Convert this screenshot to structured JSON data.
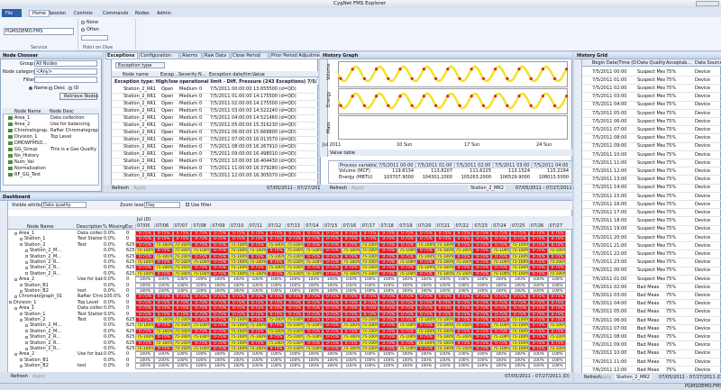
{
  "window": {
    "title": "CygNet FMS Explorer",
    "status": "PGMSDEMO.FMS"
  },
  "ribbon": {
    "tabs": [
      "File",
      "Home",
      "Session",
      "Controls",
      "Commands",
      "Nodes",
      "Admin"
    ],
    "service": "PGMSDEMO.FMS",
    "service_label": "Service",
    "options": [
      "None",
      "Often"
    ],
    "group_label": "Point on Dive"
  },
  "node_chooser": {
    "title": "Node Chooser",
    "group_label": "Group:",
    "group": "All Nodes",
    "category_label": "Node category:",
    "category": "<Any>",
    "filter_label": "Filter",
    "radios": [
      "Name",
      "Desc",
      "ID"
    ],
    "button": "Retrieve Nodes",
    "columns": [
      "Node Name",
      "Node Desc"
    ],
    "rows": [
      {
        "name": "Area_1",
        "desc": "Data collection"
      },
      {
        "name": "Area_2",
        "desc": "Use for balancing"
      },
      {
        "name": "Chromatograp...",
        "desc": "Rafter Chromatograph"
      },
      {
        "name": "Division_1",
        "desc": "Top Level"
      },
      {
        "name": "DMDWFMSD..."
      },
      {
        "name": "GG_Group",
        "desc": "This is a Gas Quality ..."
      },
      {
        "name": "No_History"
      },
      {
        "name": "Num_Val"
      },
      {
        "name": "Normalization"
      },
      {
        "name": "RF_GG_Test"
      }
    ]
  },
  "exceptions": {
    "tabs": [
      "Exceptions",
      "Configuration",
      "Alarms",
      "Raw Data",
      "Close Period",
      "Prior Period Adjustment",
      "Balance"
    ],
    "filter": "Exception type",
    "columns": [
      "Node name",
      "Excep...",
      "Severity",
      "N...",
      "Exception date/tim...",
      "Value"
    ],
    "group": "Exception type: High/low operational limit - Diff. Pressure (243 Exceptions) 7/5/2011...",
    "rows": [
      {
        "node": "Station_2_RR1",
        "status": "Open",
        "severity": "Medium",
        "n": "0",
        "date": "7/5/2011 00:00:00",
        "value": "13.655500 (d=QD)"
      },
      {
        "node": "Station_2_RR1",
        "status": "Open",
        "severity": "Medium",
        "n": "0",
        "date": "7/5/2011 01:00:00",
        "value": "14.175500 (d=QD)"
      },
      {
        "node": "Station_2_RR1",
        "status": "Open",
        "severity": "Medium",
        "n": "0",
        "date": "7/5/2011 02:00:00",
        "value": "14.175500 (d=QD)"
      },
      {
        "node": "Station_2_RR1",
        "status": "Open",
        "severity": "Medium",
        "n": "0",
        "date": "7/5/2011 03:00:00",
        "value": "14.522240 (d=QD)"
      },
      {
        "node": "Station_2_RR1",
        "status": "Open",
        "severity": "Medium",
        "n": "0",
        "date": "7/5/2011 04:00:00",
        "value": "14.521460 (d=QD)"
      },
      {
        "node": "Station_2_RR1",
        "status": "Open",
        "severity": "Medium",
        "n": "0",
        "date": "7/5/2011 05:00:00",
        "value": "15.316230 (d=QD)"
      },
      {
        "node": "Station_2_RR1",
        "status": "Open",
        "severity": "Medium",
        "n": "0",
        "date": "7/5/2011 06:00:00",
        "value": "15.668800 (d=QD)"
      },
      {
        "node": "Station_2_RR1",
        "status": "Open",
        "severity": "Medium",
        "n": "0",
        "date": "7/5/2011 07:00:00",
        "value": "16.013570 (d=QD)"
      },
      {
        "node": "Station_2_RR1",
        "status": "Open",
        "severity": "Medium",
        "n": "0",
        "date": "7/5/2011 08:00:00",
        "value": "16.267910 (d=QD)"
      },
      {
        "node": "Station_2_RR1",
        "status": "Open",
        "severity": "Medium",
        "n": "0",
        "date": "7/5/2011 09:00:00",
        "value": "16.498010 (d=QD)"
      },
      {
        "node": "Station_2_RR1",
        "status": "Open",
        "severity": "Medium",
        "n": "0",
        "date": "7/5/2011 10:00:00",
        "value": "16.404430 (d=QD)"
      },
      {
        "node": "Station_2_RR1",
        "status": "Open",
        "severity": "Medium",
        "n": "0",
        "date": "7/5/2011 11:00:00",
        "value": "16.379280 (d=QD)"
      },
      {
        "node": "Station_2_RR1",
        "status": "Open",
        "severity": "Medium",
        "n": "0",
        "date": "7/5/2011 12:00:00",
        "value": "16.305070 (d=QD)"
      }
    ],
    "footer": [
      "Refresh",
      "Apply"
    ],
    "range": "07/05/2011 - 07/27/2011 (D)"
  },
  "history_graph": {
    "title": "History Graph",
    "lanes": [
      "Volume",
      "Energy",
      "Mass"
    ],
    "x_labels": [
      "Jul 2011",
      "10 Sun",
      "17 Sun",
      "24 Sun"
    ],
    "values_title": "Value table",
    "values_columns": [
      "Process variable",
      "7/5/2011 00:00",
      "7/5/2011 01:00",
      "7/5/2011 02:00",
      "7/5/2011 03:00",
      "7/5/2011 04:00"
    ],
    "values_rows": [
      [
        "Volume (MCF)",
        "119.8134",
        "113.8207",
        "111.6225",
        "113.1524",
        "115.2194"
      ],
      [
        "Energy (MBTU)",
        "103707.9000",
        "104301.2000",
        "105263.2000",
        "106529.9000",
        "108013.5000"
      ]
    ],
    "footer": [
      "Refresh",
      "Apply"
    ],
    "node": "Station_2_MR2",
    "range": "07/05/2011 - 07/27/2011 (D)"
  },
  "history_grid": {
    "title": "History Grid",
    "columns": [
      "Begin Date/Time (D)",
      "Data Quality",
      "Acceptab...",
      "Data Source"
    ],
    "rows": [
      [
        "7/5/2011 00:00",
        "Suspect Meas",
        "75%",
        "Device"
      ],
      [
        "7/5/2011 01:00",
        "Suspect Meas",
        "75%",
        "Device"
      ],
      [
        "7/5/2011 02:00",
        "Suspect Meas",
        "75%",
        "Device"
      ],
      [
        "7/5/2011 03:00",
        "Suspect Meas",
        "75%",
        "Device"
      ],
      [
        "7/5/2011 04:00",
        "Suspect Meas",
        "75%",
        "Device"
      ],
      [
        "7/5/2011 05:00",
        "Suspect Meas",
        "75%",
        "Device"
      ],
      [
        "7/5/2011 06:00",
        "Suspect Meas",
        "75%",
        "Device"
      ],
      [
        "7/5/2011 07:00",
        "Suspect Meas",
        "75%",
        "Device"
      ],
      [
        "7/5/2011 08:00",
        "Suspect Meas",
        "75%",
        "Device"
      ],
      [
        "7/5/2011 09:00",
        "Suspect Meas",
        "75%",
        "Device"
      ],
      [
        "7/5/2011 10:00",
        "Suspect Meas",
        "75%",
        "Device"
      ],
      [
        "7/5/2011 11:00",
        "Suspect Meas",
        "75%",
        "Device"
      ],
      [
        "7/5/2011 12:00",
        "Suspect Meas",
        "75%",
        "Device"
      ],
      [
        "7/5/2011 13:00",
        "Suspect Meas",
        "75%",
        "Device"
      ],
      [
        "7/5/2011 14:00",
        "Suspect Meas",
        "75%",
        "Device"
      ],
      [
        "7/5/2011 15:00",
        "Suspect Meas",
        "75%",
        "Device"
      ],
      [
        "7/5/2011 16:00",
        "Suspect Meas",
        "75%",
        "Device"
      ],
      [
        "7/5/2011 17:00",
        "Suspect Meas",
        "75%",
        "Device"
      ],
      [
        "7/5/2011 18:00",
        "Suspect Meas",
        "75%",
        "Device"
      ],
      [
        "7/5/2011 19:00",
        "Suspect Meas",
        "75%",
        "Device"
      ],
      [
        "7/5/2011 20:00",
        "Suspect Meas",
        "75%",
        "Device"
      ],
      [
        "7/5/2011 21:00",
        "Suspect Meas",
        "75%",
        "Device"
      ],
      [
        "7/5/2011 22:00",
        "Suspect Meas",
        "75%",
        "Device"
      ],
      [
        "7/5/2011 23:00",
        "Suspect Meas",
        "75%",
        "Device"
      ],
      [
        "7/6/2011 00:00",
        "Suspect Meas",
        "75%",
        "Device"
      ],
      [
        "7/6/2011 01:00",
        "Suspect Meas",
        "75%",
        "Device"
      ],
      [
        "7/6/2011 02:00",
        "Bad Meas",
        "75%",
        "Device"
      ],
      [
        "7/6/2011 03:00",
        "Bad Meas",
        "75%",
        "Device"
      ],
      [
        "7/6/2011 04:00",
        "Bad Meas",
        "75%",
        "Device"
      ],
      [
        "7/6/2011 05:00",
        "Bad Meas",
        "75%",
        "Device"
      ],
      [
        "7/6/2011 06:00",
        "Bad Meas",
        "75%",
        "Device"
      ],
      [
        "7/6/2011 07:00",
        "Bad Meas",
        "75%",
        "Device"
      ],
      [
        "7/6/2011 08:00",
        "Bad Meas",
        "75%",
        "Device"
      ],
      [
        "7/6/2011 09:00",
        "Bad Meas",
        "75%",
        "Device"
      ],
      [
        "7/6/2011 10:00",
        "Bad Meas",
        "75%",
        "Device"
      ],
      [
        "7/6/2011 11:00",
        "Bad Meas",
        "75%",
        "Device"
      ],
      [
        "7/6/2011 12:00",
        "Bad Meas",
        "75%",
        "Device"
      ]
    ],
    "footer": [
      "Refresh",
      "Apply"
    ],
    "node": "Station_2_MR2",
    "range": "07/05/2011 - 07/27/2011 (D)"
  },
  "dashboard": {
    "title": "Dashboard",
    "attribute_label": "Visible attribute:",
    "attribute": "Data quality",
    "zoom_label": "Zoom level:",
    "zoom": "Day",
    "filter_label": "Use filter",
    "month": "Jul (D)",
    "columns": [
      "Node Name",
      "Description",
      "% Missing",
      "Exc"
    ],
    "dates": [
      "07/05",
      "07/06",
      "07/07",
      "07/08",
      "07/09",
      "07/10",
      "07/11",
      "07/12",
      "07/13",
      "07/14",
      "07/15",
      "07/16",
      "07/17",
      "07/18",
      "07/19",
      "07/20",
      "07/21",
      "07/22",
      "07/23",
      "07/24",
      "07/25",
      "07/26",
      "07/27"
    ],
    "cell_labels": {
      "r": "0-75%",
      "y": "75-100%",
      "w": "100%"
    },
    "rows": [
      {
        "name": "Area_1",
        "desc": "Data collection",
        "missing": "0.0%",
        "exc": "0",
        "cells": "rrrrrrrrrrrrrrrrrrrrrrr"
      },
      {
        "name": "Station_1",
        "desc": "Test Station ...",
        "missing": "0.0%",
        "exc": "0",
        "cells": "rrrrrrrrrrrrrrrrrrrrrrr"
      },
      {
        "name": "Station_2",
        "desc": "Test",
        "missing": "0.0%",
        "exc": "625",
        "cells": "ryyrryryyrrryrryyrrryrr"
      },
      {
        "name": "Station_2_M...",
        "missing": "0.0%",
        "exc": "625",
        "cells": "yryyryyryyryyryryyryyry"
      },
      {
        "name": "Station_2_M...",
        "missing": "0.0%",
        "exc": "625",
        "cells": "ryyrryryyrrryrryyrrryrr"
      },
      {
        "name": "Station_2_R...",
        "missing": "0.0%",
        "exc": "625",
        "cells": "yryyryyryyryyryryyryyry"
      },
      {
        "name": "Station_2_R...",
        "missing": "0.0%",
        "exc": "625",
        "cells": "ryyrryryyrrryrryyrrryrr"
      },
      {
        "name": "Station_2_R...",
        "missing": "0.0%",
        "exc": "625",
        "cells": "yryyryyryyryyryryyryyry"
      },
      {
        "name": "Area_2",
        "desc": "Use for bala...",
        "missing": "0.0%",
        "exc": "0",
        "cells": "wwwwwwwwwwwwwwwwwwwwwww"
      },
      {
        "name": "Station_B1",
        "missing": "0.0%",
        "exc": "0",
        "cells": "wwwwwwwwwwwwwwwwwwwwwww"
      },
      {
        "name": "Station_B2",
        "desc": "test",
        "missing": "0.0%",
        "exc": "0",
        "cells": "wwwwwwwwwwwwwwwwwwwwwww"
      },
      {
        "name": "Chromatograph_01",
        "desc": "Rafter Chroma...",
        "missing": "100.0%",
        "exc": "0",
        "cells": "rrrrrrrrrrrrrrrrrrrrrrr"
      },
      {
        "name": "Division_1",
        "desc": "Top Level",
        "missing": "0.0%",
        "exc": "0",
        "cells": "rrrrrrrrrrrrrrrrrrrrrrr"
      },
      {
        "name": "Area_1",
        "desc": "Data collection",
        "missing": "0.0%",
        "exc": "0",
        "cells": "rrrrrrrrrrrrrrrrrrrrrrr"
      },
      {
        "name": "Station_1",
        "desc": "Test Station",
        "missing": "0.0%",
        "exc": "0",
        "cells": "rrrrrrrrrrrrrrrrrrrrrrr"
      },
      {
        "name": "Station_2",
        "desc": "Test",
        "missing": "0.0%",
        "exc": "625",
        "cells": "ryyrryryyrrryrryyrrryrr"
      },
      {
        "name": "Station_2_M...",
        "missing": "0.0%",
        "exc": "625",
        "cells": "yryyryyryyryyryryyryyry"
      },
      {
        "name": "Station_2_M...",
        "missing": "0.0%",
        "exc": "625",
        "cells": "ryyrryryyrrryrryyrrryrr"
      },
      {
        "name": "Station_2_R...",
        "missing": "0.0%",
        "exc": "625",
        "cells": "yryyryyryyryyryryyryyry"
      },
      {
        "name": "Station_2_R...",
        "missing": "0.0%",
        "exc": "625",
        "cells": "ryyrryryyrrryrryyrrryrr"
      },
      {
        "name": "Station_2_R...",
        "missing": "0.0%",
        "exc": "625",
        "cells": "yryyryyryyryyryryyryyry"
      },
      {
        "name": "Area_2",
        "desc": "Use for bala...",
        "missing": "0.0%",
        "exc": "0",
        "cells": "wwwwwwwwwwwwwwwwwwwwwww"
      },
      {
        "name": "Station_B1",
        "missing": "0.0%",
        "exc": "0",
        "cells": "wwwwwwwwwwwwwwwwwwwwwww"
      },
      {
        "name": "Station_B2",
        "desc": "test",
        "missing": "0.0%",
        "exc": "0",
        "cells": "wwwwwwwwwwwwwwwwwwwwwww"
      }
    ],
    "footer": [
      "Refresh",
      "Apply"
    ],
    "range": "07/05/2011 - 07/27/2011 (D)"
  }
}
